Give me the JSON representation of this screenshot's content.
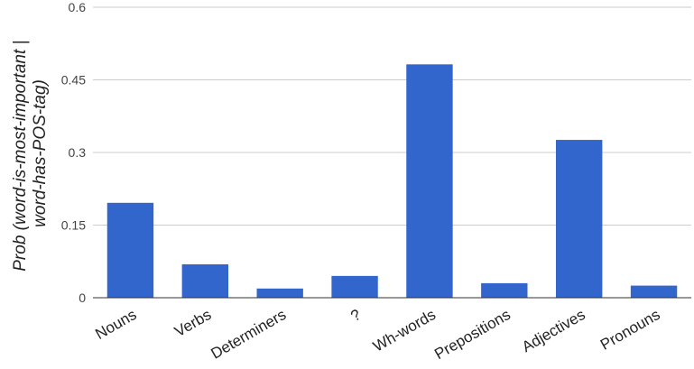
{
  "chart_data": {
    "type": "bar",
    "title": "",
    "xlabel": "",
    "ylabel": [
      "Prob (word-is-most-important |",
      "word-has-POS-tag)"
    ],
    "categories": [
      "Nouns",
      "Verbs",
      "Determiners",
      "?",
      "Wh-words",
      "Prepositions",
      "Adjectives",
      "Pronouns"
    ],
    "series": [
      {
        "values": [
          0.196,
          0.069,
          0.019,
          0.045,
          0.482,
          0.03,
          0.326,
          0.025
        ]
      }
    ],
    "ylim": [
      0,
      0.6
    ],
    "yticks": [
      0,
      0.15,
      0.3,
      0.45,
      0.6
    ],
    "ytick_labels": [
      "0",
      "0.15",
      "0.3",
      "0.45",
      "0.6"
    ],
    "grid": true,
    "legend": "none",
    "colors": {
      "bar": "#3366cc",
      "grid": "#cccccc",
      "axis": "#333333"
    }
  }
}
